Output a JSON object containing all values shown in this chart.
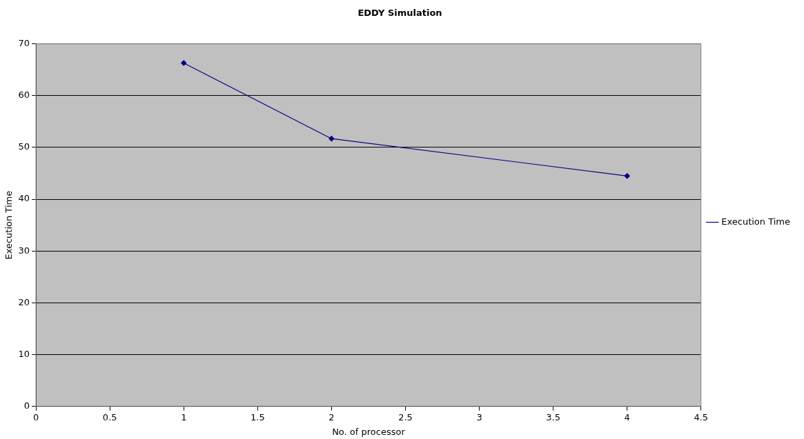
{
  "chart_data": {
    "type": "line",
    "title": "EDDY Simulation",
    "xlabel": "No. of processor",
    "ylabel": "Execution Time",
    "x": [
      1,
      2,
      4
    ],
    "series": [
      {
        "name": "Execution Time",
        "color": "#000080",
        "values": [
          66.3,
          51.7,
          44.5
        ]
      }
    ],
    "xlim": [
      0,
      4.5
    ],
    "xticks": [
      0,
      0.5,
      1,
      1.5,
      2,
      2.5,
      3,
      3.5,
      4,
      4.5
    ],
    "ylim": [
      0,
      70
    ],
    "yticks": [
      0,
      10,
      20,
      30,
      40,
      50,
      60,
      70
    ],
    "grid": "y",
    "legend": "right",
    "marker": "diamond",
    "line_style": "solid"
  }
}
